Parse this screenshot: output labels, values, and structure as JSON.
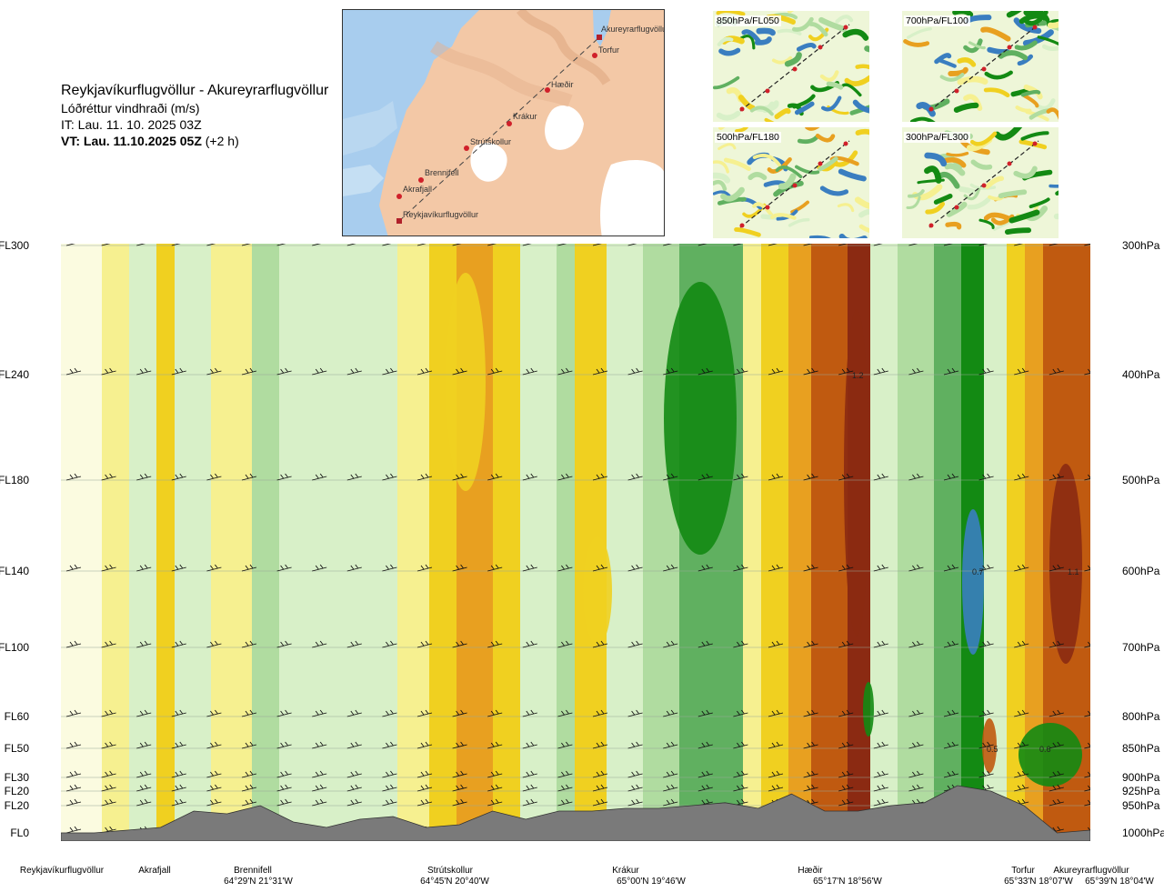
{
  "header": {
    "route": "Reykjavíkurflugvöllur - Akureyrarflugvöllur",
    "variable": "Lóðréttur vindhraði (m/s)",
    "issue_time": "IT: Lau. 11. 10. 2025 03Z",
    "valid_lead": "VT: Lau. 11.10.2025 05Z",
    "valid_offset": "(+2 h)"
  },
  "map": {
    "points": [
      "Akureyrarflugvöllur",
      "Torfur",
      "Hæðir",
      "Krákur",
      "Strútskollur",
      "Brennifell",
      "Akrafjall",
      "Reykjavíkurflugvöllur"
    ]
  },
  "thumbnails": [
    {
      "label": "850hPa/FL050"
    },
    {
      "label": "700hPa/FL100"
    },
    {
      "label": "500hPa/FL180"
    },
    {
      "label": "300hPa/FL300"
    }
  ],
  "chart_data": {
    "type": "heatmap",
    "title": "Reykjavíkurflugvöllur - Akureyrarflugvöllur",
    "subtitle": "Lóðréttur vindhraði (m/s)",
    "colors": {
      "strong_down": "#8b2a12",
      "mod_down": "#c05a10",
      "down": "#e8a020",
      "weak_down": "#f0d020",
      "slight_down": "#f6f090",
      "calm": "#fbfbe0",
      "slight_up": "#d8f0c8",
      "weak_up": "#b0dca0",
      "up": "#60b060",
      "strong_up": "#138a13",
      "very_strong_up": "#3a7ec0",
      "terrain": "#7a7a7a"
    },
    "left_axis": [
      "FL300",
      "FL240",
      "FL180",
      "FL140",
      "FL100",
      "FL60",
      "FL50",
      "FL30",
      "FL20",
      "FL20",
      "FL0"
    ],
    "right_axis": [
      "300hPa",
      "400hPa",
      "500hPa",
      "600hPa",
      "700hPa",
      "800hPa",
      "850hPa",
      "900hPa",
      "925hPa",
      "950hPa",
      "1000hPa"
    ],
    "pressure_levels_hpa": [
      300,
      400,
      500,
      600,
      700,
      800,
      850,
      900,
      925,
      950,
      1000
    ],
    "x_points": [
      {
        "name": "Reykjavíkurflugvöllur",
        "coord": ""
      },
      {
        "name": "Akrafjall",
        "coord": ""
      },
      {
        "name": "Brennifell",
        "coord": "64°29'N 21°31'W"
      },
      {
        "name": "Strútskollur",
        "coord": "64°45'N 20°40'W"
      },
      {
        "name": "Krákur",
        "coord": "65°00'N 19°46'W"
      },
      {
        "name": "Hæðir",
        "coord": "65°17'N 18°56'W"
      },
      {
        "name": "Torfur",
        "coord": "65°33'N 18°07'W"
      },
      {
        "name": "Akureyrarflugvöllur",
        "coord": "65°39'N 18°04'W"
      }
    ],
    "annotations": [
      {
        "text": "1.2",
        "level_hpa": 400,
        "near": "Hæðir"
      },
      {
        "text": "0.7",
        "level_hpa": 600,
        "near": "Torfur"
      },
      {
        "text": "1.1",
        "level_hpa": 600,
        "near": "Akureyrarflugvöllur"
      },
      {
        "text": "0.5",
        "level_hpa": 850,
        "near": "Torfur"
      },
      {
        "text": "0.6",
        "level_hpa": 850,
        "near": "Torfur"
      }
    ],
    "terrain_profile_hpa": [
      1000,
      1000,
      995,
      990,
      960,
      965,
      950,
      980,
      990,
      975,
      970,
      990,
      985,
      960,
      975,
      960,
      960,
      955,
      955,
      950,
      945,
      955,
      930,
      960,
      960,
      950,
      945,
      915,
      925,
      950,
      1000,
      995
    ]
  }
}
